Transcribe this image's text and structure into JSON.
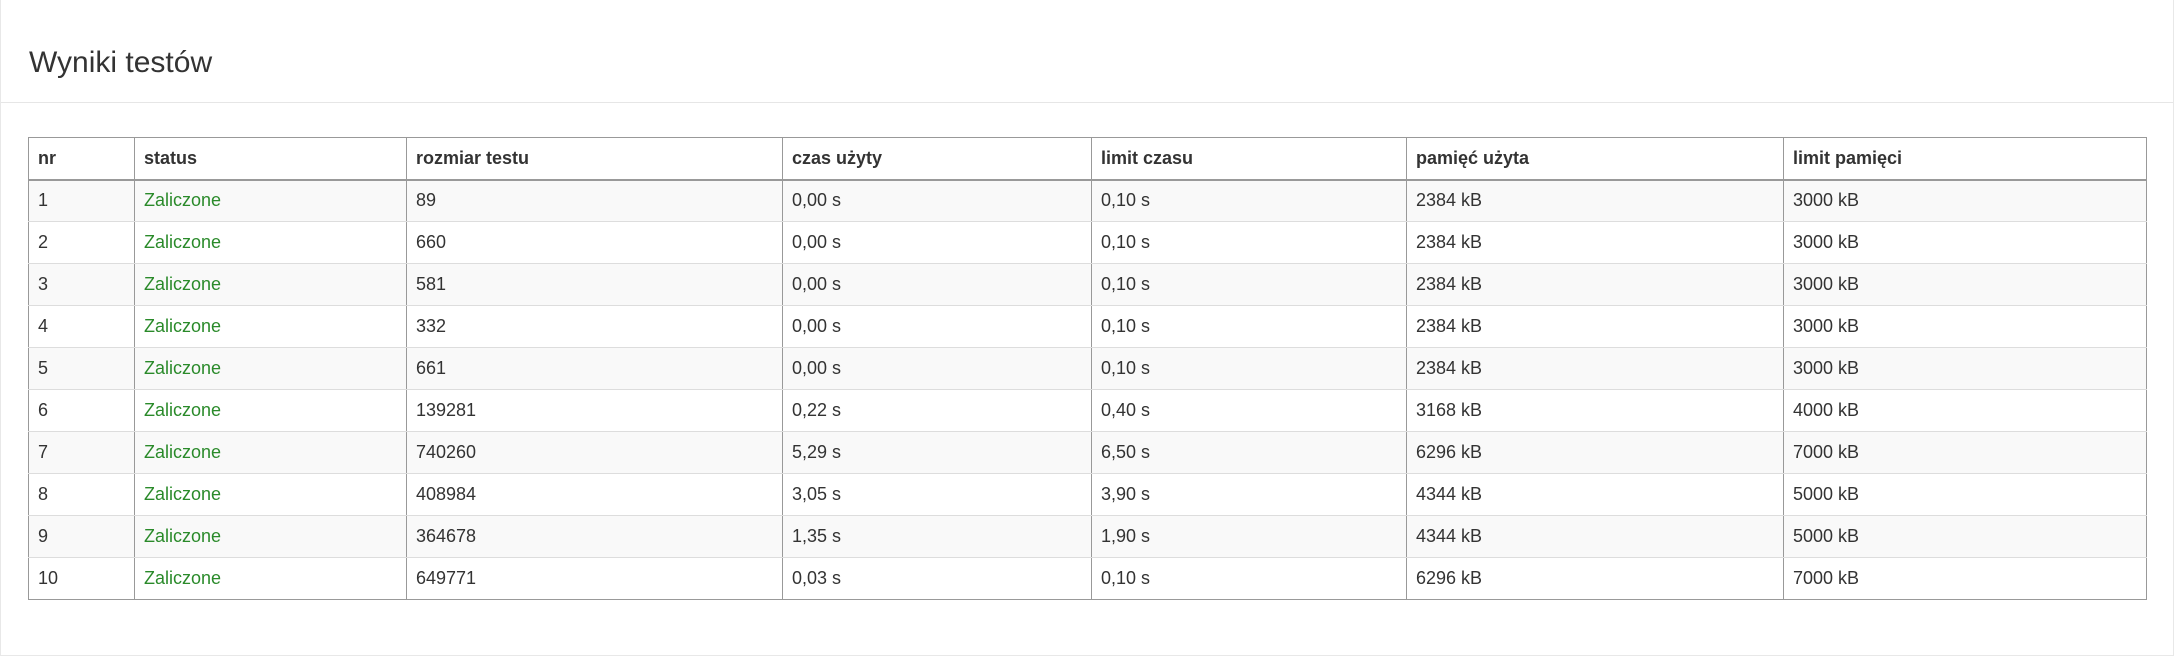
{
  "panel": {
    "title": "Wyniki testów"
  },
  "colors": {
    "status_ok": "#2a8a2a",
    "border": "#999999",
    "row_stripe": "#f9f9f9"
  },
  "table": {
    "columns": [
      "nr",
      "status",
      "rozmiar testu",
      "czas użyty",
      "limit czasu",
      "pamięć użyta",
      "limit pamięci"
    ],
    "rows": [
      [
        "1",
        "Zaliczone",
        "89",
        "0,00 s",
        "0,10 s",
        "2384 kB",
        "3000 kB"
      ],
      [
        "2",
        "Zaliczone",
        "660",
        "0,00 s",
        "0,10 s",
        "2384 kB",
        "3000 kB"
      ],
      [
        "3",
        "Zaliczone",
        "581",
        "0,00 s",
        "0,10 s",
        "2384 kB",
        "3000 kB"
      ],
      [
        "4",
        "Zaliczone",
        "332",
        "0,00 s",
        "0,10 s",
        "2384 kB",
        "3000 kB"
      ],
      [
        "5",
        "Zaliczone",
        "661",
        "0,00 s",
        "0,10 s",
        "2384 kB",
        "3000 kB"
      ],
      [
        "6",
        "Zaliczone",
        "139281",
        "0,22 s",
        "0,40 s",
        "3168 kB",
        "4000 kB"
      ],
      [
        "7",
        "Zaliczone",
        "740260",
        "5,29 s",
        "6,50 s",
        "6296 kB",
        "7000 kB"
      ],
      [
        "8",
        "Zaliczone",
        "408984",
        "3,05 s",
        "3,90 s",
        "4344 kB",
        "5000 kB"
      ],
      [
        "9",
        "Zaliczone",
        "364678",
        "1,35 s",
        "1,90 s",
        "4344 kB",
        "5000 kB"
      ],
      [
        "10",
        "Zaliczone",
        "649771",
        "0,03 s",
        "0,10 s",
        "6296 kB",
        "7000 kB"
      ]
    ]
  }
}
